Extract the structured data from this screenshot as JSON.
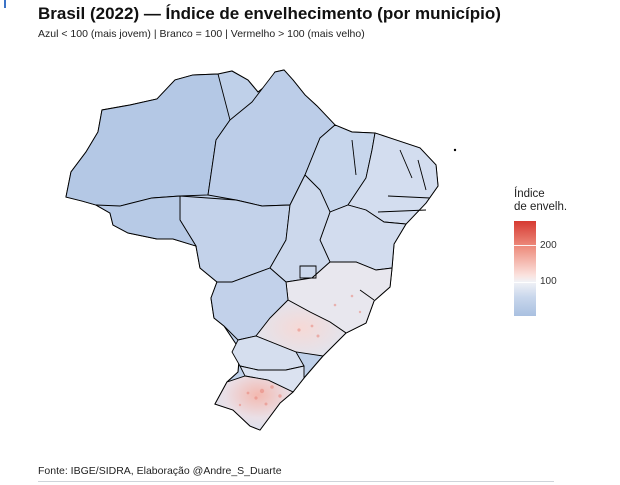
{
  "title": "Brasil (2022) — Índice de envelhecimento (por município)",
  "subtitle": "Azul < 100 (mais jovem) | Branco = 100 | Vermelho > 100 (mais velho)",
  "caption": "Fonte: IBGE/SIDRA, Elaboração @Andre_S_Duarte",
  "legend": {
    "title_line1": "Índice",
    "title_line2": "de envelh.",
    "ticks": [
      "200",
      "100"
    ]
  },
  "colors": {
    "young": "#a9c0e0",
    "neutral": "#f4f4f6",
    "old": "#d63a32",
    "borders": "#000000"
  }
}
